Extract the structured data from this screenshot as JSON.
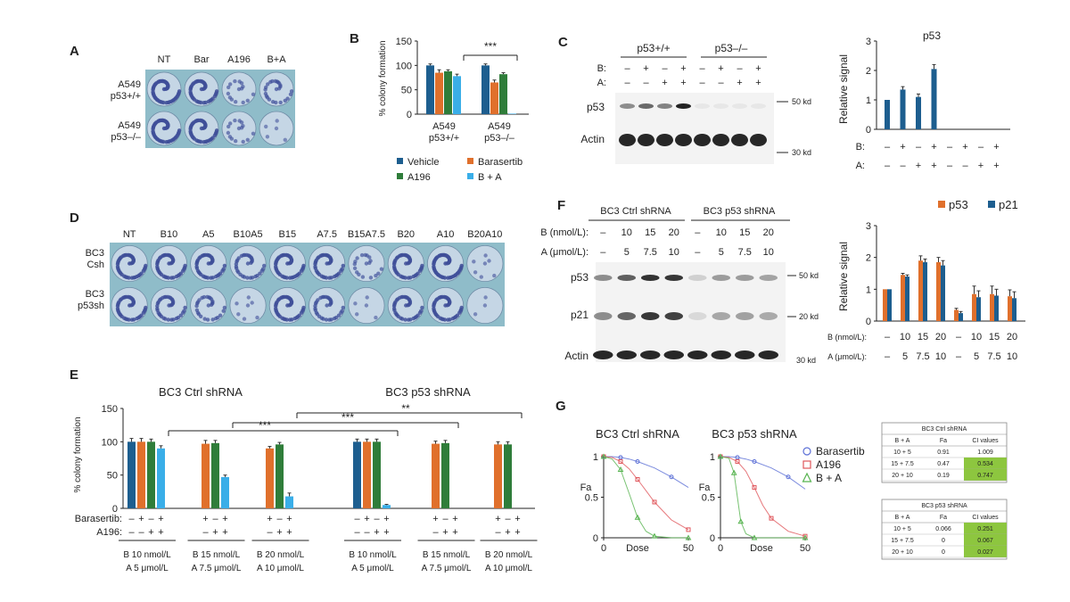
{
  "panel_letters": {
    "A": "A",
    "B": "B",
    "C": "C",
    "D": "D",
    "E": "E",
    "F": "F",
    "G": "G"
  },
  "colors": {
    "vehicle": "#1d5e8f",
    "barasertib": "#e0702c",
    "a196": "#2f7d3a",
    "ba": "#3aaee8",
    "p53": "#e0702c",
    "p21": "#1d5e8f",
    "plate_bg": "#8fbcc9",
    "dish": "#c5d6e5",
    "stain": "#3f4f99",
    "cell_green": "#8dc63f"
  },
  "panelA": {
    "cols": [
      "NT",
      "Bar",
      "A196",
      "B+A"
    ],
    "rows": [
      {
        "l1": "A549",
        "l2": "p53+/+"
      },
      {
        "l1": "A549",
        "l2": "p53–/–"
      }
    ],
    "stain": [
      [
        0.85,
        0.75,
        0.25,
        0.4
      ],
      [
        0.85,
        0.8,
        0.25,
        0.08
      ]
    ]
  },
  "panelB": {
    "ylabel": "% colony formation",
    "sig": "***",
    "groups": [
      {
        "l1": "A549",
        "l2": "p53+/+"
      },
      {
        "l1": "A549",
        "l2": "p53–/–"
      }
    ],
    "legend": [
      "Vehicle",
      "Barasertib",
      "A196",
      "B + A"
    ]
  },
  "panelC_blot": {
    "groups": [
      "p53+/+",
      "p53–/–"
    ],
    "rowB": {
      "label": "B:",
      "marks": [
        "–",
        "+",
        "–",
        "+",
        "–",
        "+",
        "–",
        "+"
      ]
    },
    "rowA": {
      "label": "A:",
      "marks": [
        "–",
        "–",
        "+",
        "+",
        "–",
        "–",
        "+",
        "+"
      ]
    },
    "bands": [
      {
        "name": "p53",
        "kd": "50 kd"
      },
      {
        "name": "Actin",
        "kd": "30 kd"
      }
    ]
  },
  "panelD": {
    "cols": [
      "NT",
      "B10",
      "A5",
      "B10A5",
      "B15",
      "A7.5",
      "B15A7.5",
      "B20",
      "A10",
      "B20A10"
    ],
    "rows": [
      {
        "l1": "BC3",
        "l2": "Csh"
      },
      {
        "l1": "BC3",
        "l2": "p53sh"
      }
    ],
    "stain": [
      [
        0.8,
        0.75,
        0.7,
        0.55,
        0.8,
        0.7,
        0.3,
        0.75,
        0.85,
        0.12
      ],
      [
        0.75,
        0.6,
        0.45,
        0.12,
        0.75,
        0.55,
        0.08,
        0.65,
        0.75,
        0.05
      ]
    ]
  },
  "panelE": {
    "title_left": "BC3 Ctrl shRNA",
    "title_right": "BC3 p53 shRNA",
    "ylabel": "% colony formation",
    "row_bar_label": "Barasertib:",
    "row_a196_label": "A196:",
    "sig": [
      "***",
      "***",
      "**",
      "***"
    ],
    "bmarks_full": [
      "–",
      "+",
      "–",
      "+"
    ],
    "amarks_full": [
      "–",
      "–",
      "+",
      "+"
    ],
    "bmarks_short": [
      "+",
      "–",
      "+"
    ],
    "amarks_short": [
      "–",
      "+",
      "+"
    ],
    "doses": [
      {
        "b": "B 10 nmol/L",
        "a": "A 5 μmol/L"
      },
      {
        "b": "B 15 nmol/L",
        "a": "A 7.5 μmol/L"
      },
      {
        "b": "B 20 nmol/L",
        "a": "A 10 μmol/L"
      },
      {
        "b": "B 10 nmol/L",
        "a": "A 5 μmol/L"
      },
      {
        "b": "B 15 nmol/L",
        "a": "A 7.5 μmol/L"
      },
      {
        "b": "B 20 nmol/L",
        "a": "A 10 μmol/L"
      }
    ]
  },
  "panelF_blot": {
    "groups": [
      "BC3 Ctrl shRNA",
      "BC3 p53 shRNA"
    ],
    "rowB": {
      "label": "B (nmol/L):",
      "marks": [
        "–",
        "10",
        "15",
        "20",
        "–",
        "10",
        "15",
        "20"
      ]
    },
    "rowA": {
      "label": "A (μmol/L):",
      "marks": [
        "–",
        "5",
        "7.5",
        "10",
        "–",
        "5",
        "7.5",
        "10"
      ]
    },
    "bands": [
      {
        "name": "p53",
        "kd": "50 kd"
      },
      {
        "name": "p21",
        "kd": "20 kd"
      },
      {
        "name": "Actin",
        "kd": "30 kd"
      }
    ]
  },
  "panelG": {
    "titles": [
      "BC3 Ctrl shRNA",
      "BC3 p53 shRNA"
    ],
    "ylabel": "Fa",
    "xlabel": "Dose",
    "legend": [
      "Barasertib",
      "A196",
      "B + A"
    ],
    "tables": [
      {
        "title": "BC3 Ctrl shRNA",
        "headers": [
          "B + A",
          "Fa",
          "CI values"
        ],
        "rows": [
          [
            "10 + 5",
            "0.91",
            "1.009"
          ],
          [
            "15 + 7.5",
            "0.47",
            "0.534"
          ],
          [
            "20 + 10",
            "0.19",
            "0.747"
          ]
        ],
        "highlight": [
          false,
          true,
          true
        ]
      },
      {
        "title": "BC3 p53 shRNA",
        "headers": [
          "B + A",
          "Fa",
          "CI values"
        ],
        "rows": [
          [
            "10 + 5",
            "0.066",
            "0.251"
          ],
          [
            "15 + 7.5",
            "0",
            "0.067"
          ],
          [
            "20 + 10",
            "0",
            "0.027"
          ]
        ],
        "highlight": [
          true,
          true,
          true
        ]
      }
    ]
  },
  "chart_data": [
    {
      "type": "bar",
      "panel": "B",
      "categories": [
        "A549 p53+/+",
        "A549 p53–/–"
      ],
      "series": [
        {
          "name": "Vehicle",
          "values": [
            100,
            100
          ],
          "errors": [
            3,
            3
          ]
        },
        {
          "name": "Barasertib",
          "values": [
            85,
            65
          ],
          "errors": [
            6,
            5
          ]
        },
        {
          "name": "A196",
          "values": [
            88,
            82
          ],
          "errors": [
            3,
            3
          ]
        },
        {
          "name": "B + A",
          "values": [
            78,
            1
          ],
          "errors": [
            4,
            0
          ]
        }
      ],
      "ylabel": "% colony formation",
      "ylim": [
        0,
        150
      ],
      "yticks": [
        0,
        50,
        100,
        150
      ]
    },
    {
      "type": "bar",
      "panel": "C",
      "title": "p53",
      "categories": [
        "1",
        "2",
        "3",
        "4",
        "5",
        "6",
        "7",
        "8"
      ],
      "values": [
        1.0,
        1.35,
        1.1,
        2.05,
        0,
        0,
        0,
        0
      ],
      "errors": [
        0,
        0.1,
        0.1,
        0.15,
        0,
        0,
        0,
        0
      ],
      "ylabel": "Relative signal",
      "ylim": [
        0,
        3
      ],
      "yticks": [
        0,
        1,
        2,
        3
      ],
      "b_marks": [
        "–",
        "+",
        "–",
        "+",
        "–",
        "+",
        "–",
        "+"
      ],
      "a_marks": [
        "–",
        "–",
        "+",
        "+",
        "–",
        "–",
        "+",
        "+"
      ],
      "b_label": "B:",
      "a_label": "A:"
    },
    {
      "type": "bar",
      "panel": "E",
      "ylabel": "% colony formation",
      "ylim": [
        0,
        150
      ],
      "yticks": [
        0,
        50,
        100,
        150
      ],
      "groups": [
        {
          "series": [
            "Vehicle",
            "Barasertib",
            "A196",
            "B + A"
          ],
          "values": [
            100,
            100,
            100,
            90
          ],
          "errors": [
            5,
            5,
            4,
            4
          ]
        },
        {
          "series": [
            "Barasertib",
            "A196",
            "B + A"
          ],
          "values": [
            97,
            98,
            47
          ],
          "errors": [
            5,
            4,
            3
          ]
        },
        {
          "series": [
            "Barasertib",
            "A196",
            "B + A"
          ],
          "values": [
            90,
            96,
            18
          ],
          "errors": [
            3,
            3,
            5
          ]
        },
        {
          "series": [
            "Vehicle",
            "Barasertib",
            "A196",
            "B + A"
          ],
          "values": [
            100,
            100,
            100,
            5
          ],
          "errors": [
            4,
            4,
            4,
            1
          ]
        },
        {
          "series": [
            "Barasertib",
            "A196"
          ],
          "values": [
            97,
            98
          ],
          "errors": [
            4,
            4
          ]
        },
        {
          "series": [
            "Barasertib",
            "A196"
          ],
          "values": [
            96,
            96
          ],
          "errors": [
            4,
            4
          ]
        }
      ]
    },
    {
      "type": "bar",
      "panel": "F",
      "categories": [
        "1",
        "2",
        "3",
        "4",
        "5",
        "6",
        "7",
        "8"
      ],
      "series": [
        {
          "name": "p53",
          "values": [
            1.0,
            1.45,
            1.9,
            1.85,
            0.35,
            0.85,
            0.85,
            0.78
          ],
          "errors": [
            0,
            0.05,
            0.15,
            0.15,
            0.05,
            0.25,
            0.25,
            0.2
          ]
        },
        {
          "name": "p21",
          "values": [
            1.0,
            1.4,
            1.85,
            1.75,
            0.25,
            0.75,
            0.8,
            0.72
          ],
          "errors": [
            0,
            0.05,
            0.1,
            0.15,
            0.05,
            0.2,
            0.2,
            0.2
          ]
        }
      ],
      "ylabel": "Relative signal",
      "ylim": [
        0,
        3
      ],
      "yticks": [
        0,
        1,
        2,
        3
      ],
      "b_label": "B (nmol/L):",
      "a_label": "A (μmol/L):",
      "b_marks": [
        "–",
        "10",
        "15",
        "20",
        "–",
        "10",
        "15",
        "20"
      ],
      "a_marks": [
        "–",
        "5",
        "7.5",
        "10",
        "–",
        "5",
        "7.5",
        "10"
      ]
    },
    {
      "type": "line",
      "panel": "G",
      "title": "BC3 Ctrl shRNA",
      "xlabel": "Dose",
      "ylabel": "Fa",
      "xlim": [
        0,
        50
      ],
      "ylim": [
        0,
        1
      ],
      "xticks": [
        0,
        50
      ],
      "yticks": [
        0,
        0.5,
        1
      ],
      "series": [
        {
          "name": "Barasertib",
          "x": [
            0,
            5,
            10,
            15,
            20,
            30,
            40,
            50
          ],
          "y": [
            1,
            1,
            0.99,
            0.97,
            0.94,
            0.86,
            0.75,
            0.62
          ]
        },
        {
          "name": "A196",
          "x": [
            0,
            5,
            10,
            15,
            20,
            25,
            30,
            40,
            50
          ],
          "y": [
            1,
            0.99,
            0.94,
            0.85,
            0.72,
            0.58,
            0.44,
            0.22,
            0.1
          ]
        },
        {
          "name": "B + A",
          "x": [
            0,
            5,
            10,
            15,
            20,
            25,
            30,
            40,
            50
          ],
          "y": [
            1,
            0.97,
            0.84,
            0.55,
            0.25,
            0.08,
            0.02,
            0,
            0
          ]
        }
      ]
    },
    {
      "type": "line",
      "panel": "G",
      "title": "BC3 p53 shRNA",
      "xlabel": "Dose",
      "ylabel": "Fa",
      "xlim": [
        0,
        50
      ],
      "ylim": [
        0,
        1
      ],
      "xticks": [
        0,
        50
      ],
      "yticks": [
        0,
        0.5,
        1
      ],
      "series": [
        {
          "name": "Barasertib",
          "x": [
            0,
            5,
            10,
            15,
            20,
            30,
            40,
            50
          ],
          "y": [
            1,
            1,
            0.99,
            0.97,
            0.94,
            0.86,
            0.75,
            0.6
          ]
        },
        {
          "name": "A196",
          "x": [
            0,
            5,
            10,
            15,
            20,
            25,
            30,
            40,
            50
          ],
          "y": [
            1,
            0.99,
            0.94,
            0.82,
            0.62,
            0.4,
            0.24,
            0.08,
            0.02
          ]
        },
        {
          "name": "B + A",
          "x": [
            0,
            5,
            8,
            10,
            12,
            15,
            20,
            30,
            50
          ],
          "y": [
            1,
            0.98,
            0.8,
            0.5,
            0.2,
            0.05,
            0,
            0,
            0
          ]
        }
      ]
    }
  ]
}
